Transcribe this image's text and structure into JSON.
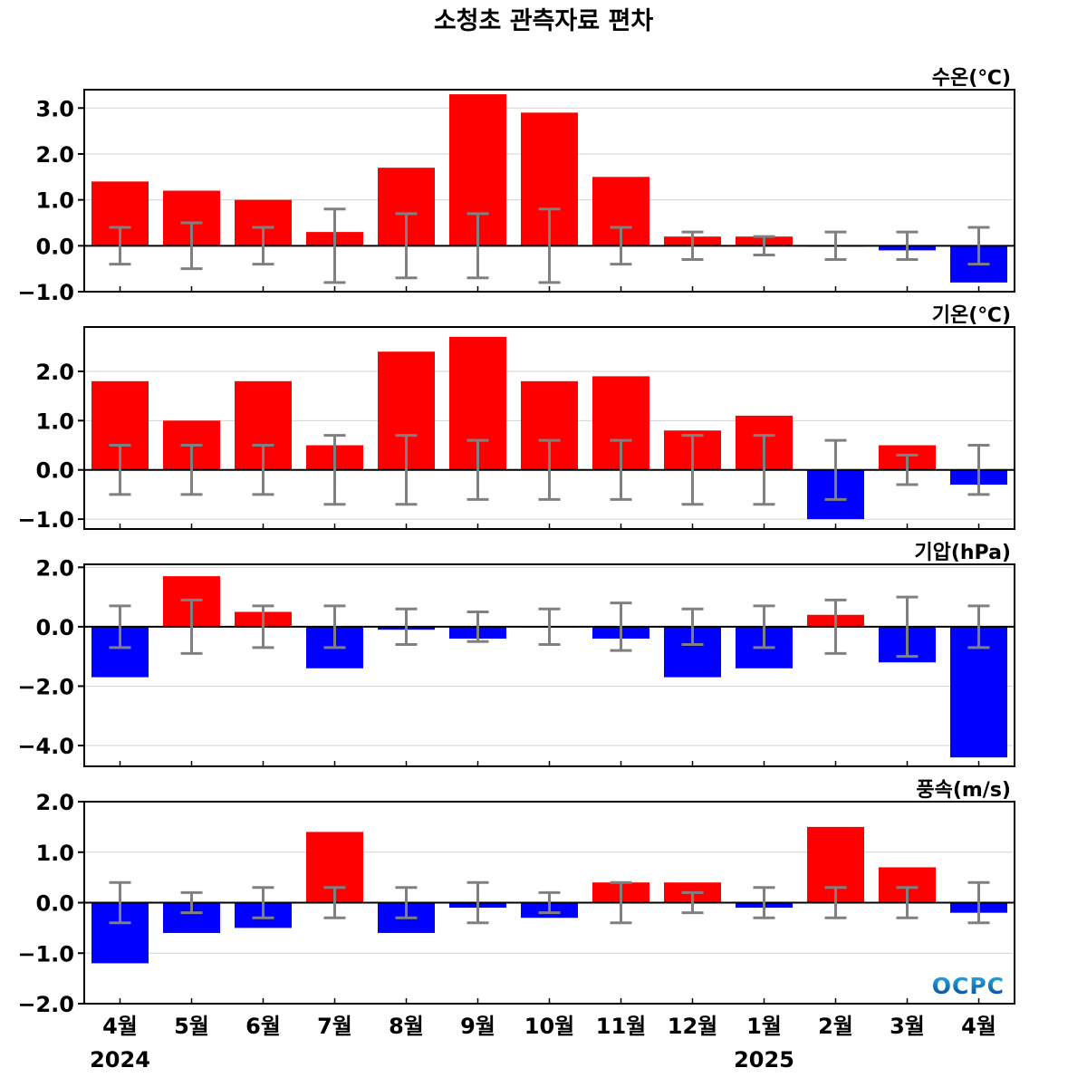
{
  "title": "소청초 관측자료 편차",
  "months": [
    "4월",
    "5월",
    "6월",
    "7월",
    "8월",
    "9월",
    "10월",
    "11월",
    "12월",
    "1월",
    "2월",
    "3월",
    "4월"
  ],
  "years": [
    {
      "label": "2024",
      "month_index": 0
    },
    {
      "label": "2025",
      "month_index": 9
    }
  ],
  "logo": "OCPC",
  "colors": {
    "positive": "#ff0000",
    "negative": "#0000ff",
    "error_bar": "#808080",
    "grid": "#d3d3d3"
  },
  "chart_data": [
    {
      "type": "bar",
      "label": "수온(℃)",
      "ylim": [
        -1.0,
        3.4
      ],
      "yticks": [
        -1.0,
        0.0,
        1.0,
        2.0,
        3.0
      ],
      "tick_labels": [
        "−1.0",
        "0.0",
        "1.0",
        "2.0",
        "3.0"
      ],
      "grid": true,
      "values": [
        1.4,
        1.2,
        1.0,
        0.3,
        1.7,
        3.3,
        2.9,
        1.5,
        0.2,
        0.2,
        0.0,
        -0.1,
        -0.8
      ],
      "error_range": [
        [
          -0.4,
          0.4
        ],
        [
          -0.5,
          0.5
        ],
        [
          -0.4,
          0.4
        ],
        [
          -0.8,
          0.8
        ],
        [
          -0.7,
          0.7
        ],
        [
          -0.7,
          0.7
        ],
        [
          -0.8,
          0.8
        ],
        [
          -0.4,
          0.4
        ],
        [
          -0.3,
          0.3
        ],
        [
          -0.2,
          0.2
        ],
        [
          -0.3,
          0.3
        ],
        [
          -0.3,
          0.3
        ],
        [
          -0.4,
          0.4
        ]
      ]
    },
    {
      "type": "bar",
      "label": "기온(℃)",
      "ylim": [
        -1.2,
        2.9
      ],
      "yticks": [
        -1.0,
        0.0,
        1.0,
        2.0
      ],
      "tick_labels": [
        "−1.0",
        "0.0",
        "1.0",
        "2.0"
      ],
      "grid": true,
      "values": [
        1.8,
        1.0,
        1.8,
        0.5,
        2.4,
        2.7,
        1.8,
        1.9,
        0.8,
        1.1,
        -1.0,
        0.5,
        -0.3
      ],
      "error_range": [
        [
          -0.5,
          0.5
        ],
        [
          -0.5,
          0.5
        ],
        [
          -0.5,
          0.5
        ],
        [
          -0.7,
          0.7
        ],
        [
          -0.7,
          0.7
        ],
        [
          -0.6,
          0.6
        ],
        [
          -0.6,
          0.6
        ],
        [
          -0.6,
          0.6
        ],
        [
          -0.7,
          0.7
        ],
        [
          -0.7,
          0.7
        ],
        [
          -0.6,
          0.6
        ],
        [
          -0.3,
          0.3
        ],
        [
          -0.5,
          0.5
        ]
      ]
    },
    {
      "type": "bar",
      "label": "기압(hPa)",
      "ylim": [
        -4.7,
        2.1
      ],
      "yticks": [
        -4.0,
        -2.0,
        0.0,
        2.0
      ],
      "tick_labels": [
        "−4.0",
        "−2.0",
        "0.0",
        "2.0"
      ],
      "grid": true,
      "values": [
        -1.7,
        1.7,
        0.5,
        -1.4,
        -0.1,
        -0.4,
        0.0,
        -0.4,
        -1.7,
        -1.4,
        0.4,
        -1.2,
        -4.4
      ],
      "error_range": [
        [
          -0.7,
          0.7
        ],
        [
          -0.9,
          0.9
        ],
        [
          -0.7,
          0.7
        ],
        [
          -0.7,
          0.7
        ],
        [
          -0.6,
          0.6
        ],
        [
          -0.5,
          0.5
        ],
        [
          -0.6,
          0.6
        ],
        [
          -0.8,
          0.8
        ],
        [
          -0.6,
          0.6
        ],
        [
          -0.7,
          0.7
        ],
        [
          -0.9,
          0.9
        ],
        [
          -1.0,
          1.0
        ],
        [
          -0.7,
          0.7
        ]
      ]
    },
    {
      "type": "bar",
      "label": "풍속(m/s)",
      "ylim": [
        -2.0,
        2.0
      ],
      "yticks": [
        -2.0,
        -1.0,
        0.0,
        1.0,
        2.0
      ],
      "tick_labels": [
        "−2.0",
        "−1.0",
        "0.0",
        "1.0",
        "2.0"
      ],
      "grid": true,
      "values": [
        -1.2,
        -0.6,
        -0.5,
        1.4,
        -0.6,
        -0.1,
        -0.3,
        0.4,
        0.4,
        -0.1,
        1.5,
        0.7,
        -0.2
      ],
      "error_range": [
        [
          -0.4,
          0.4
        ],
        [
          -0.2,
          0.2
        ],
        [
          -0.3,
          0.3
        ],
        [
          -0.3,
          0.3
        ],
        [
          -0.3,
          0.3
        ],
        [
          -0.4,
          0.4
        ],
        [
          -0.2,
          0.2
        ],
        [
          -0.4,
          0.4
        ],
        [
          -0.2,
          0.2
        ],
        [
          -0.3,
          0.3
        ],
        [
          -0.3,
          0.3
        ],
        [
          -0.3,
          0.3
        ],
        [
          -0.4,
          0.4
        ]
      ]
    }
  ]
}
